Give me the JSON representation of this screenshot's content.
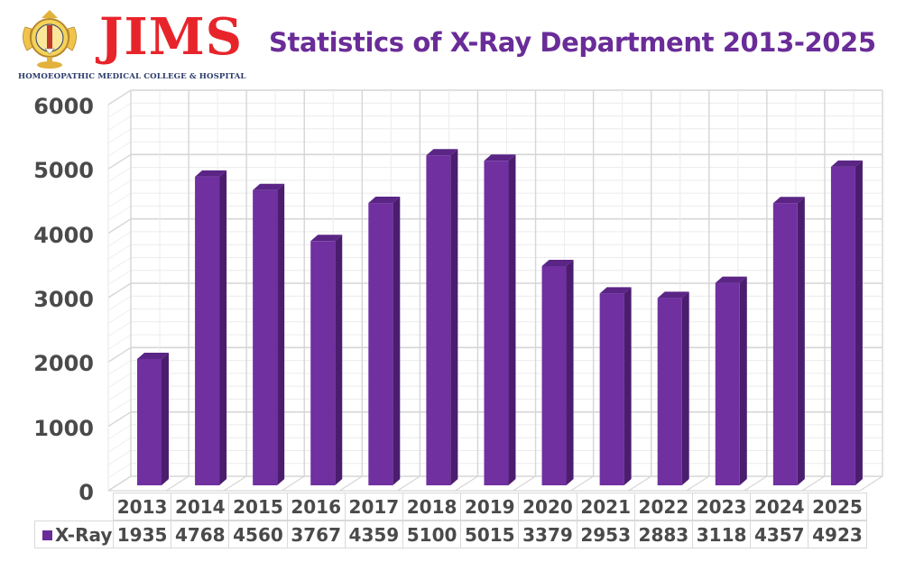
{
  "header": {
    "logo_name": "JIMS",
    "logo_subtitle": "HOMOEOPATHIC MEDICAL COLLEGE & HOSPITAL",
    "title": "Statistics of X-Ray Department 2013-2025"
  },
  "colors": {
    "bar_front": "#7030a0",
    "bar_side": "#4b1d6e",
    "bar_top": "#5a2585",
    "title": "#6a2c98",
    "logo_red": "#e8242b",
    "grid": "#dcdcdc"
  },
  "axis": {
    "y_ticks": [
      "6000",
      "5000",
      "4000",
      "3000",
      "2000",
      "1000",
      "0"
    ]
  },
  "table": {
    "legend_label": "X-Ray",
    "years": [
      "2013",
      "2014",
      "2015",
      "2016",
      "2017",
      "2018",
      "2019",
      "2020",
      "2021",
      "2022",
      "2023",
      "2024",
      "2025"
    ],
    "values": [
      "1935",
      "4768",
      "4560",
      "3767",
      "4359",
      "5100",
      "5015",
      "3379",
      "2953",
      "2883",
      "3118",
      "4357",
      "4923"
    ]
  },
  "chart_data": {
    "type": "bar",
    "title": "Statistics of X-Ray Department 2013-2025",
    "xlabel": "",
    "ylabel": "",
    "categories": [
      "2013",
      "2014",
      "2015",
      "2016",
      "2017",
      "2018",
      "2019",
      "2020",
      "2021",
      "2022",
      "2023",
      "2024",
      "2025"
    ],
    "series": [
      {
        "name": "X-Ray",
        "values": [
          1935,
          4768,
          4560,
          3767,
          4359,
          5100,
          5015,
          3379,
          2953,
          2883,
          3118,
          4357,
          4923
        ]
      }
    ],
    "ylim": [
      0,
      6000
    ],
    "y_tick_step": 1000,
    "grid": true,
    "style": "3d-column",
    "legend_position": "data-table-below"
  }
}
